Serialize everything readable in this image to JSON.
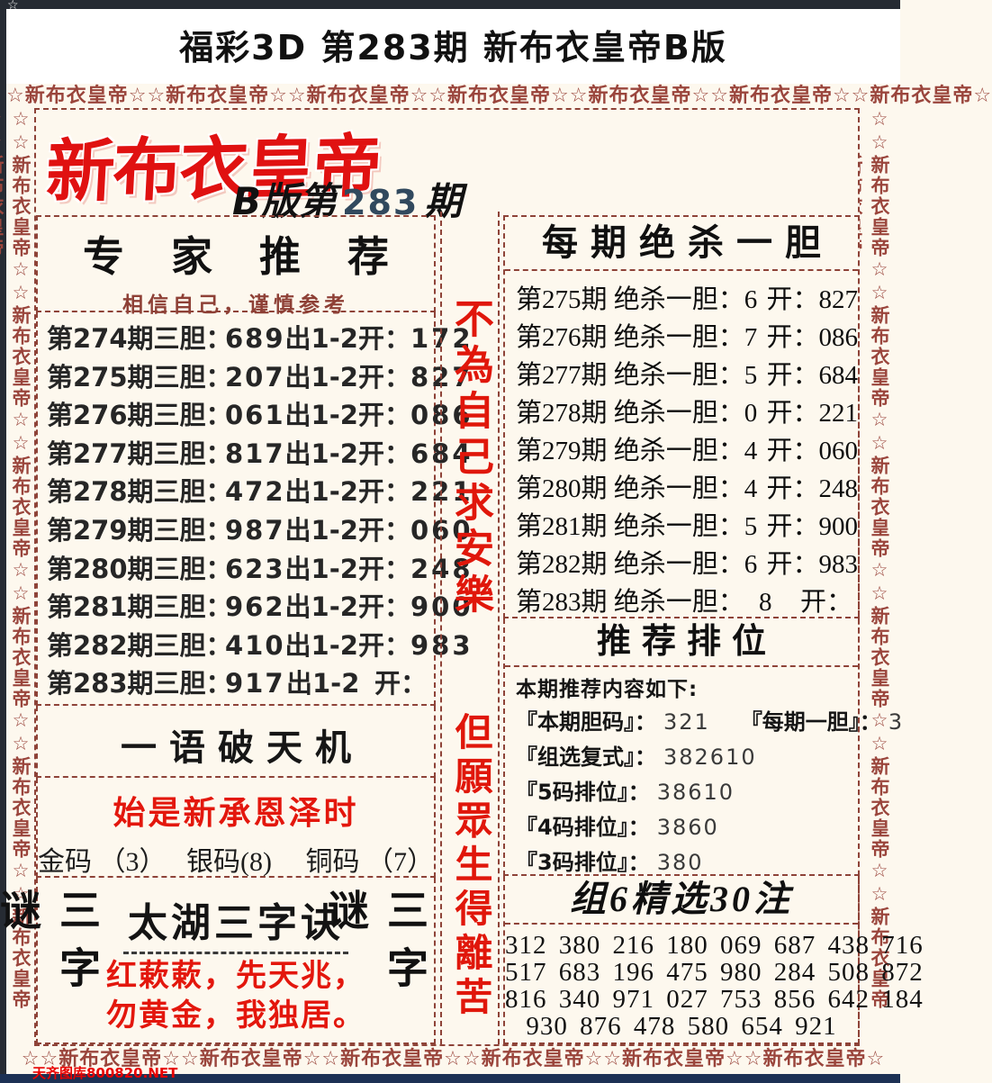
{
  "header": {
    "title": "福彩3D 第283期 新布衣皇帝B版"
  },
  "frame": {
    "top_row": "☆新布衣皇帝☆☆新布衣皇帝☆☆新布衣皇帝☆☆新布衣皇帝☆☆新布衣皇帝☆☆新布衣皇帝☆☆新布衣皇帝☆",
    "bottom_row": "☆☆新布衣皇帝☆☆新布衣皇帝☆☆新布衣皇帝☆☆新布衣皇帝☆☆新布衣皇帝☆☆新布衣皇帝☆",
    "left_col": "☆☆新布衣皇帝☆☆新布衣皇帝☆☆新布衣皇帝☆☆新布衣皇帝☆☆新布衣皇帝☆☆新布衣皇帝☆☆新布衣皇帝",
    "right_col": "☆☆新布衣皇帝☆☆新布衣皇帝☆☆新布衣皇帝☆☆新布衣皇帝☆☆新布衣皇帝☆☆新布衣皇帝☆☆新布衣皇帝",
    "corner_star": "☆",
    "watermark": "天齐图库800820.NET"
  },
  "logo": {
    "brand": "新布衣皇帝",
    "edition_prefix": "B版第",
    "issue": "283",
    "edition_suffix": "期"
  },
  "expert": {
    "title": "专 家 推 荐",
    "subtitle": "相信自己，谨慎参考",
    "rows": [
      {
        "qi": "第274期三胆：",
        "dan": "689",
        "chu": "出1-2",
        "kai": "开：",
        "res": "172"
      },
      {
        "qi": "第275期三胆：",
        "dan": "207",
        "chu": "出1-2",
        "kai": "开：",
        "res": "827"
      },
      {
        "qi": "第276期三胆：",
        "dan": "061",
        "chu": "出1-2",
        "kai": "开：",
        "res": "086"
      },
      {
        "qi": "第277期三胆：",
        "dan": "817",
        "chu": "出1-2",
        "kai": "开：",
        "res": "684"
      },
      {
        "qi": "第278期三胆：",
        "dan": "472",
        "chu": "出1-2",
        "kai": "开：",
        "res": "221"
      },
      {
        "qi": "第279期三胆：",
        "dan": "987",
        "chu": "出1-2",
        "kai": "开：",
        "res": "060"
      },
      {
        "qi": "第280期三胆：",
        "dan": "623",
        "chu": "出1-2",
        "kai": "开：",
        "res": "248"
      },
      {
        "qi": "第281期三胆：",
        "dan": "962",
        "chu": "出1-2",
        "kai": "开：",
        "res": "900"
      },
      {
        "qi": "第282期三胆：",
        "dan": "410",
        "chu": "出1-2",
        "kai": "开：",
        "res": "983"
      },
      {
        "qi": "第283期三胆：",
        "dan": "917",
        "chu": "出1-2",
        "kai": "开：",
        "res": ""
      }
    ]
  },
  "motto": {
    "top": "不為自己求安樂",
    "bottom": "但願眾生得離苦"
  },
  "kill": {
    "title": "每期绝杀一胆",
    "rows": [
      {
        "qi": "第275期 绝杀一胆：",
        "dan": "6",
        "kai": "开：",
        "res": "827"
      },
      {
        "qi": "第276期 绝杀一胆：",
        "dan": "7",
        "kai": "开：",
        "res": "086"
      },
      {
        "qi": "第277期 绝杀一胆：",
        "dan": "5",
        "kai": "开：",
        "res": "684"
      },
      {
        "qi": "第278期 绝杀一胆：",
        "dan": "0",
        "kai": "开：",
        "res": "221"
      },
      {
        "qi": "第279期 绝杀一胆：",
        "dan": "4",
        "kai": "开：",
        "res": "060"
      },
      {
        "qi": "第280期 绝杀一胆：",
        "dan": "4",
        "kai": "开：",
        "res": "248"
      },
      {
        "qi": "第281期 绝杀一胆：",
        "dan": "5",
        "kai": "开：",
        "res": "900"
      },
      {
        "qi": "第282期 绝杀一胆：",
        "dan": "6",
        "kai": "开：",
        "res": "983"
      },
      {
        "qi": "第283期 绝杀一胆：",
        "dan": "8",
        "kai": "开：",
        "res": ""
      }
    ]
  },
  "ranking": {
    "title": "推荐排位",
    "intro": "本期推荐内容如下:",
    "rows": [
      {
        "label": "『本期胆码』：",
        "value": "321",
        "label2": "『每期一胆』：",
        "value2": "3"
      },
      {
        "label": "『组选复式』：",
        "value": "382610"
      },
      {
        "label": "『5码排位』：",
        "value": "38610"
      },
      {
        "label": "『4码排位』：",
        "value": "3860"
      },
      {
        "label": "『3码排位』：",
        "value": "380"
      }
    ]
  },
  "group6": {
    "title": "组6精选30注",
    "lines": [
      "312 380 216 180 069 687 438 716",
      "517 683 196 475 980 284 508 872",
      "816 340 971 027 753 856 642 184",
      "930 876 478 580 654 921"
    ]
  },
  "tianji": {
    "title": "一语破天机",
    "riddle": "始是新承恩泽时",
    "codes": "金码 （3）　 银码(8)　 铜码 （7）"
  },
  "sanzi": {
    "side": "三字谜",
    "title": "太湖三字诀",
    "line1": "红蔌蔌，先天兆，",
    "line2": "勿黄金，我独居。"
  }
}
